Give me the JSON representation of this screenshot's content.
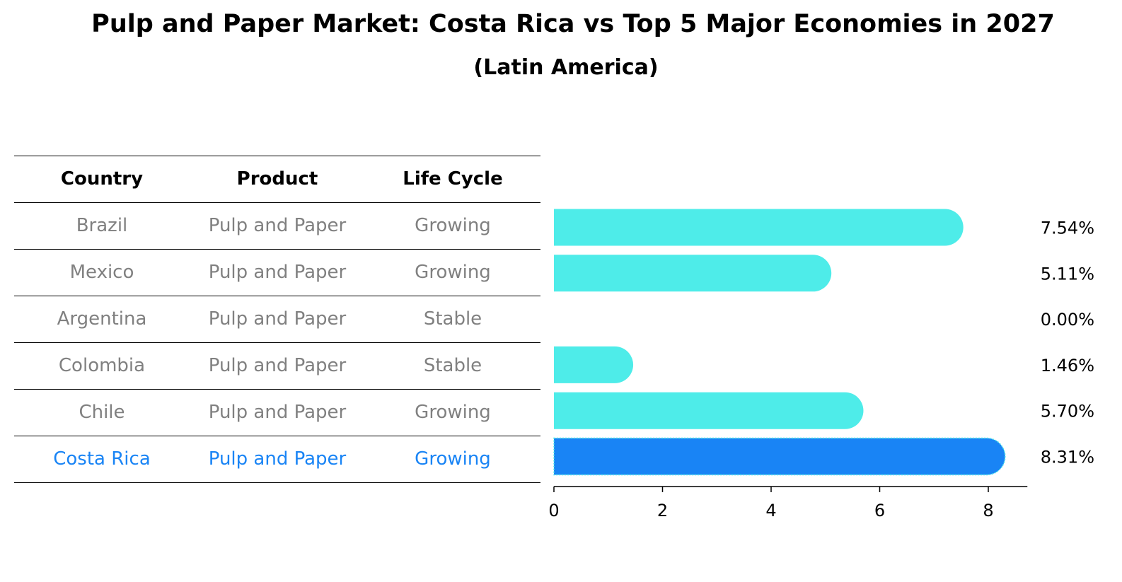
{
  "title": "Pulp and Paper Market: Costa Rica vs Top 5 Major Economies in 2027",
  "subtitle": "(Latin America)",
  "colors": {
    "highlight": "#1984F5",
    "bar": "#4EECE9",
    "muted_text": "#808080",
    "header_text": "#000000"
  },
  "table": {
    "headers": [
      "Country",
      "Product",
      "Life Cycle"
    ],
    "rows": [
      {
        "country": "Brazil",
        "product": "Pulp and Paper",
        "life_cycle": "Growing",
        "highlight": false
      },
      {
        "country": "Mexico",
        "product": "Pulp and Paper",
        "life_cycle": "Growing",
        "highlight": false
      },
      {
        "country": "Argentina",
        "product": "Pulp and Paper",
        "life_cycle": "Stable",
        "highlight": false
      },
      {
        "country": "Colombia",
        "product": "Pulp and Paper",
        "life_cycle": "Stable",
        "highlight": false
      },
      {
        "country": "Chile",
        "product": "Pulp and Paper",
        "life_cycle": "Growing",
        "highlight": false
      },
      {
        "country": "Costa Rica",
        "product": "Pulp and Paper",
        "life_cycle": "Growing",
        "highlight": true
      }
    ]
  },
  "chart_data": {
    "type": "bar",
    "orientation": "horizontal",
    "categories": [
      "Brazil",
      "Mexico",
      "Argentina",
      "Colombia",
      "Chile",
      "Costa Rica"
    ],
    "values": [
      7.54,
      5.11,
      0.0,
      1.46,
      5.7,
      8.31
    ],
    "value_labels": [
      "7.54%",
      "5.11%",
      "0.00%",
      "1.46%",
      "5.70%",
      "8.31%"
    ],
    "highlight_category": "Costa Rica",
    "xlim": [
      0,
      8.72
    ],
    "xticks": [
      0,
      2,
      4,
      6,
      8
    ],
    "xlabel": "",
    "ylabel": ""
  }
}
